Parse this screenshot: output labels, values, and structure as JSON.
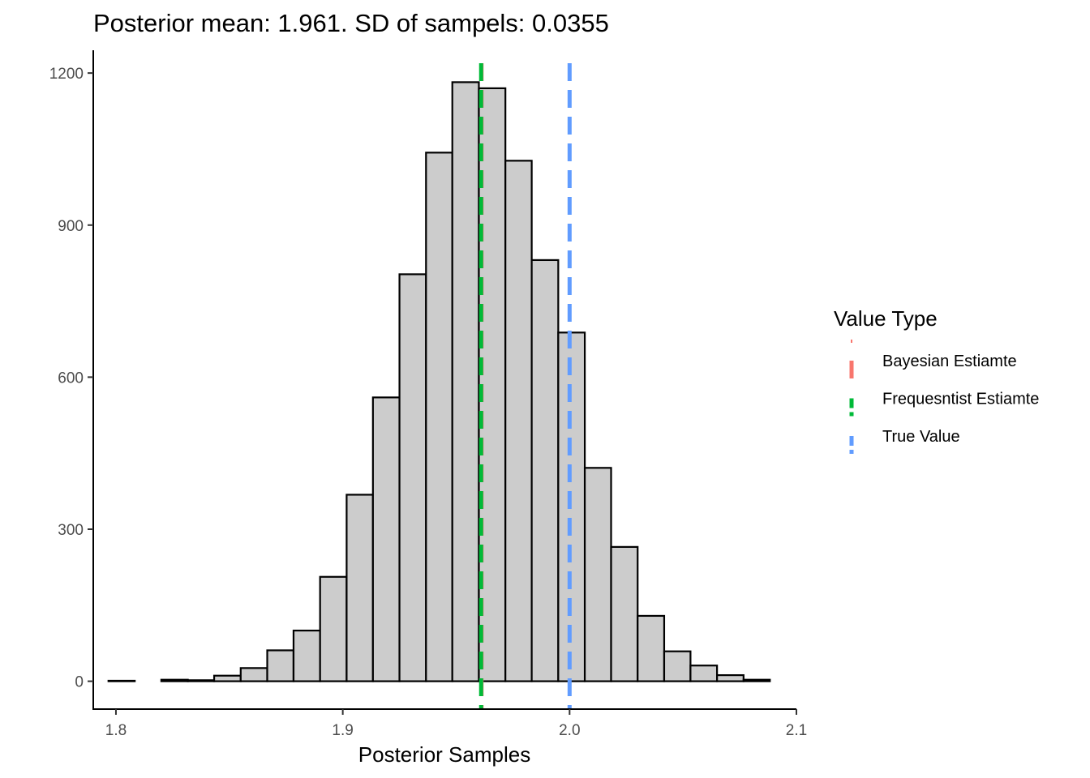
{
  "chart_data": {
    "type": "histogram",
    "title": "Posterior mean: 1.961. SD of sampels: 0.0355",
    "xlabel": "Posterior Samples",
    "ylabel": "",
    "xlim": [
      1.79,
      2.1
    ],
    "ylim": [
      -55,
      1245
    ],
    "x_ticks": [
      {
        "value": 1.8,
        "label": "1.8"
      },
      {
        "value": 1.9,
        "label": "1.9"
      },
      {
        "value": 2.0,
        "label": "2.0"
      },
      {
        "value": 2.1,
        "label": "2.1"
      }
    ],
    "y_ticks": [
      {
        "value": 0,
        "label": "0"
      },
      {
        "value": 300,
        "label": "300"
      },
      {
        "value": 600,
        "label": "600"
      },
      {
        "value": 900,
        "label": "900"
      },
      {
        "value": 1200,
        "label": "1200"
      }
    ],
    "bin_width": 0.01167,
    "bins": [
      {
        "x0": 1.7967,
        "x1": 1.8083,
        "count": 1
      },
      {
        "x0": 1.8083,
        "x1": 1.82,
        "count": 0
      },
      {
        "x0": 1.82,
        "x1": 1.8317,
        "count": 3
      },
      {
        "x0": 1.8317,
        "x1": 1.8433,
        "count": 2
      },
      {
        "x0": 1.8433,
        "x1": 1.855,
        "count": 11
      },
      {
        "x0": 1.855,
        "x1": 1.8667,
        "count": 26
      },
      {
        "x0": 1.8667,
        "x1": 1.8783,
        "count": 61
      },
      {
        "x0": 1.8783,
        "x1": 1.89,
        "count": 100
      },
      {
        "x0": 1.89,
        "x1": 1.9017,
        "count": 206
      },
      {
        "x0": 1.9017,
        "x1": 1.9133,
        "count": 368
      },
      {
        "x0": 1.9133,
        "x1": 1.925,
        "count": 560
      },
      {
        "x0": 1.925,
        "x1": 1.9367,
        "count": 803
      },
      {
        "x0": 1.9367,
        "x1": 1.9483,
        "count": 1043
      },
      {
        "x0": 1.9483,
        "x1": 1.96,
        "count": 1182
      },
      {
        "x0": 1.96,
        "x1": 1.9717,
        "count": 1170
      },
      {
        "x0": 1.9717,
        "x1": 1.9833,
        "count": 1027
      },
      {
        "x0": 1.9833,
        "x1": 1.995,
        "count": 831
      },
      {
        "x0": 1.995,
        "x1": 2.0067,
        "count": 688
      },
      {
        "x0": 2.0067,
        "x1": 2.0183,
        "count": 421
      },
      {
        "x0": 2.0183,
        "x1": 2.03,
        "count": 265
      },
      {
        "x0": 2.03,
        "x1": 2.0417,
        "count": 129
      },
      {
        "x0": 2.0417,
        "x1": 2.0533,
        "count": 59
      },
      {
        "x0": 2.0533,
        "x1": 2.065,
        "count": 31
      },
      {
        "x0": 2.065,
        "x1": 2.0767,
        "count": 12
      },
      {
        "x0": 2.0767,
        "x1": 2.0883,
        "count": 3
      }
    ],
    "bar_fill": "#cccccc",
    "bar_stroke": "#000000",
    "vlines": [
      {
        "name": "Bayesian Estiamte",
        "value": 1.961,
        "color": "#F8766D"
      },
      {
        "name": "Frequesntist Estiamte",
        "value": 1.961,
        "color": "#00BA38"
      },
      {
        "name": "True Value",
        "value": 2.0,
        "color": "#619CFF"
      }
    ],
    "legend": {
      "title": "Value Type",
      "position": "right"
    },
    "grid": false
  }
}
